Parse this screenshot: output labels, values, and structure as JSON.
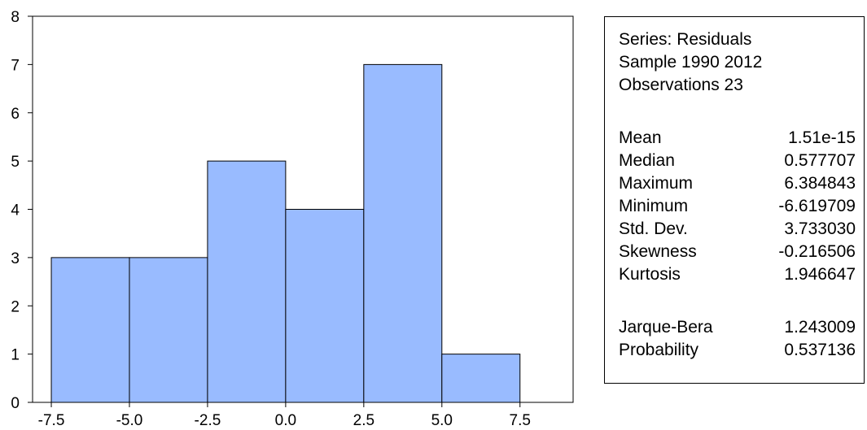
{
  "chart_data": {
    "type": "bar",
    "bin_edges": [
      -7.5,
      -5.0,
      -2.5,
      0.0,
      2.5,
      5.0,
      7.5
    ],
    "values": [
      3,
      3,
      5,
      4,
      7,
      1
    ],
    "x_ticks": [
      "-7.5",
      "-5.0",
      "-2.5",
      "0.0",
      "2.5",
      "5.0",
      "7.5"
    ],
    "y_ticks": [
      "0",
      "1",
      "2",
      "3",
      "4",
      "5",
      "6",
      "7",
      "8"
    ],
    "xlim": [
      -8.1,
      9.2
    ],
    "ylim": [
      0,
      8
    ],
    "grid": false,
    "bar_color": "#99BBFF",
    "bar_edge_color": "#000000"
  },
  "stats_box": {
    "header": [
      "Series: Residuals",
      "Sample 1990 2012",
      "Observations 23"
    ],
    "rows": [
      {
        "label": "Mean",
        "value": "1.51e-15"
      },
      {
        "label": "Median",
        "value": "0.577707"
      },
      {
        "label": "Maximum",
        "value": "6.384843"
      },
      {
        "label": "Minimum",
        "value": "-6.619709"
      },
      {
        "label": "Std. Dev.",
        "value": "3.733030"
      },
      {
        "label": "Skewness",
        "value": "-0.216506"
      },
      {
        "label": "Kurtosis",
        "value": "1.946647"
      }
    ],
    "tests": [
      {
        "label": "Jarque-Bera",
        "value": "1.243009"
      },
      {
        "label": "Probability",
        "value": "0.537136"
      }
    ]
  }
}
